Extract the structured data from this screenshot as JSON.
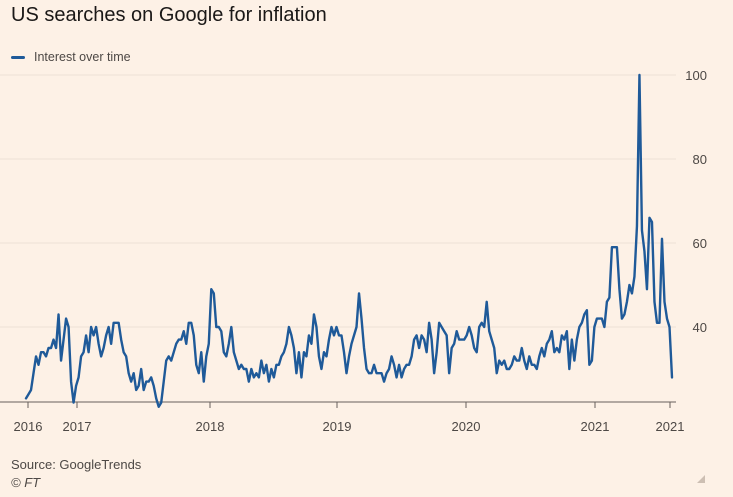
{
  "chart_title": "US searches on Google for inflation",
  "source_text": "Source: GoogleTrends",
  "credit_text": "© FT",
  "colors": {
    "background": "#fdf1e6",
    "line": "#1f5a99",
    "grid": "#ede1d5",
    "axis": "#66605c",
    "text": "#4d4845"
  },
  "chart_data": {
    "type": "line",
    "title": "US searches on Google for inflation",
    "xlabel": "",
    "ylabel": "",
    "ylim": [
      20,
      100
    ],
    "y_ticks": [
      40,
      60,
      80,
      100
    ],
    "x_tick_labels": [
      "2016",
      "2017",
      "2018",
      "2019",
      "2020",
      "2021",
      "2021"
    ],
    "grid": true,
    "legend_position": "top-left",
    "series": [
      {
        "name": "Interest over time",
        "values": [
          23,
          24,
          25,
          29,
          33,
          31,
          34,
          34,
          33,
          35,
          35,
          37,
          35,
          43,
          32,
          37,
          42,
          40,
          27,
          22,
          26,
          28,
          33,
          34,
          38,
          34,
          40,
          38,
          40,
          36,
          33,
          35,
          38,
          40,
          36,
          41,
          41,
          41,
          37,
          34,
          33,
          29,
          27,
          29,
          25,
          26,
          30,
          25,
          27,
          27,
          28,
          26,
          23,
          21,
          22,
          27,
          32,
          33,
          32,
          34,
          36,
          37,
          37,
          39,
          36,
          41,
          41,
          38,
          31,
          29,
          34,
          27,
          33,
          36,
          49,
          48,
          40,
          40,
          39,
          34,
          33,
          36,
          40,
          34,
          32,
          30,
          31,
          30,
          30,
          27,
          30,
          28,
          29,
          28,
          32,
          29,
          31,
          27,
          30,
          28,
          31,
          31,
          33,
          34,
          36,
          40,
          38,
          35,
          29,
          34,
          28,
          34,
          33,
          38,
          36,
          43,
          40,
          33,
          30,
          34,
          33,
          37,
          40,
          38,
          40,
          38,
          38,
          34,
          29,
          33,
          36,
          38,
          40,
          48,
          42,
          35,
          30,
          29,
          29,
          31,
          29,
          29,
          29,
          27,
          29,
          30,
          33,
          31,
          28,
          31,
          28,
          30,
          31,
          31,
          33,
          37,
          38,
          35,
          38,
          37,
          34,
          41,
          37,
          29,
          34,
          41,
          40,
          39,
          38,
          29,
          35,
          36,
          39,
          37,
          37,
          37,
          38,
          40,
          38,
          35,
          34,
          40,
          41,
          40,
          46,
          39,
          37,
          35,
          29,
          32,
          31,
          32,
          30,
          30,
          31,
          33,
          32,
          32,
          35,
          32,
          30,
          33,
          31,
          31,
          30,
          33,
          35,
          33,
          36,
          37,
          39,
          34,
          35,
          34,
          38,
          37,
          39,
          30,
          37,
          32,
          37,
          40,
          41,
          43,
          44,
          31,
          32,
          40,
          42,
          42,
          42,
          40,
          46,
          47,
          59,
          59,
          59,
          49,
          42,
          43,
          46,
          50,
          48,
          52,
          64,
          100,
          63,
          58,
          49,
          66,
          65,
          46,
          41,
          41,
          61,
          46,
          42,
          40,
          28
        ]
      }
    ]
  }
}
